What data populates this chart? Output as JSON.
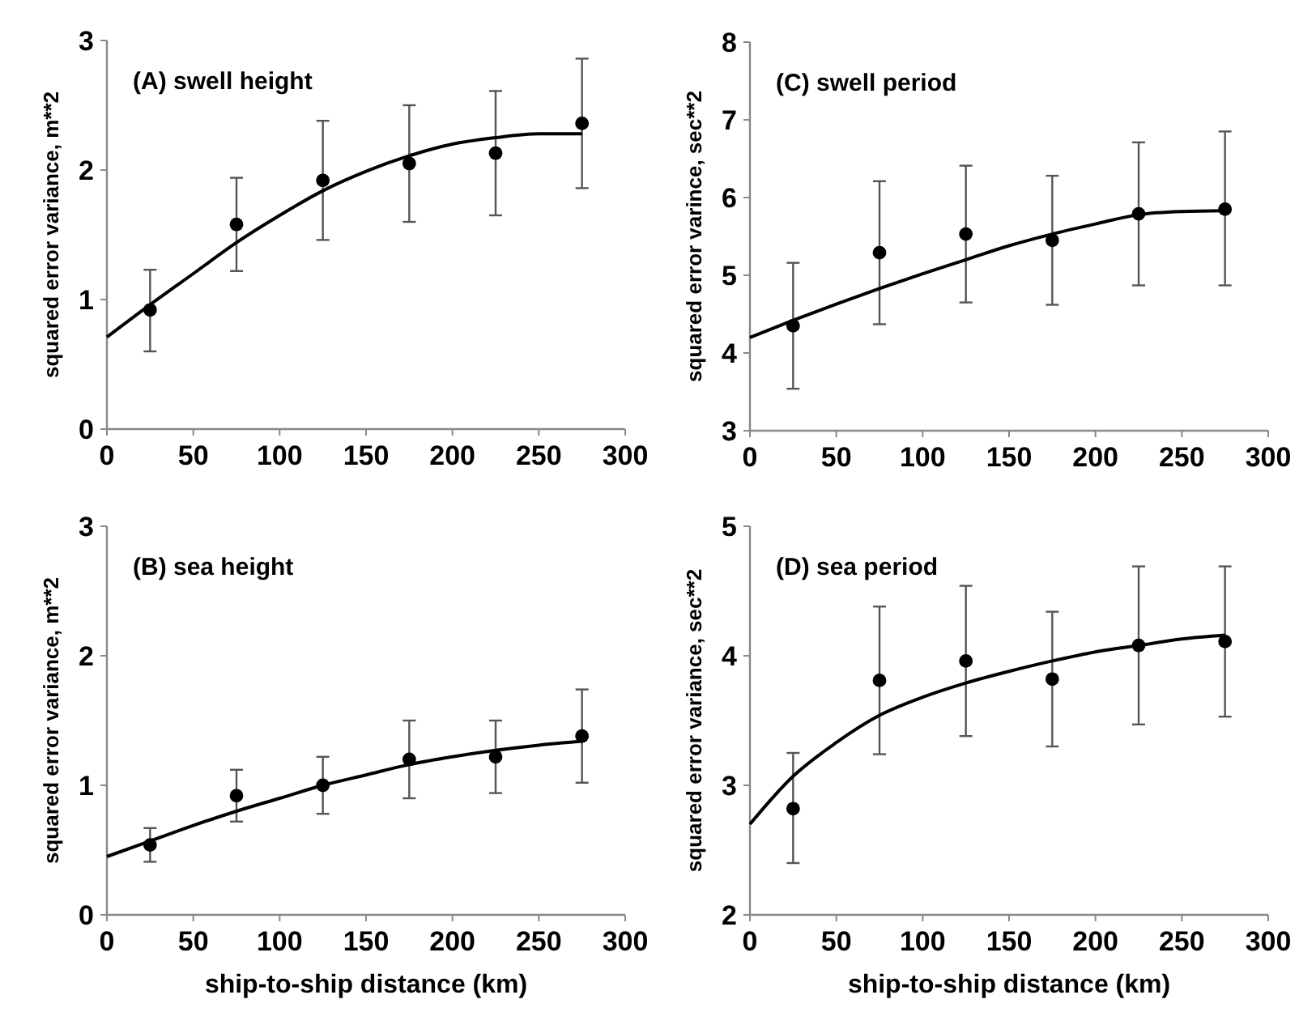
{
  "chart_data": [
    {
      "type": "scatter",
      "title": "(A) swell height",
      "ylabel": "squared error variance, m**2",
      "xlim": [
        0,
        300
      ],
      "xticks": [
        0,
        50,
        100,
        150,
        200,
        250,
        300
      ],
      "ylim": [
        0,
        3
      ],
      "yticks": [
        0,
        1,
        2,
        3
      ],
      "series": [
        {
          "marker": "circle",
          "color": "#000000",
          "x": [
            25,
            75,
            125,
            175,
            225,
            275
          ],
          "values": [
            0.92,
            1.58,
            1.92,
            2.05,
            2.13,
            2.36
          ],
          "errors": [
            [
              0.6,
              1.23
            ],
            [
              1.22,
              1.94
            ],
            [
              1.46,
              2.38
            ],
            [
              1.6,
              2.5
            ],
            [
              1.65,
              2.61
            ],
            [
              1.86,
              2.86
            ]
          ]
        },
        {
          "type": "line",
          "color": "#000000",
          "x": [
            0,
            25,
            50,
            75,
            100,
            125,
            150,
            175,
            200,
            225,
            250,
            275
          ],
          "values": [
            0.71,
            0.96,
            1.2,
            1.44,
            1.65,
            1.84,
            1.99,
            2.11,
            2.2,
            2.25,
            2.28,
            2.28
          ]
        }
      ]
    },
    {
      "type": "scatter",
      "title": "(C) swell period",
      "ylabel": "squared error varince, sec**2",
      "xlim": [
        0,
        300
      ],
      "xticks": [
        0,
        50,
        100,
        150,
        200,
        250,
        300
      ],
      "ylim": [
        3,
        8
      ],
      "yticks": [
        3,
        4,
        5,
        6,
        7,
        8
      ],
      "series": [
        {
          "marker": "circle",
          "color": "#000000",
          "x": [
            25,
            75,
            125,
            175,
            225,
            275
          ],
          "values": [
            4.35,
            5.29,
            5.53,
            5.45,
            5.79,
            5.85
          ],
          "errors": [
            [
              3.54,
              5.16
            ],
            [
              4.37,
              6.21
            ],
            [
              4.65,
              6.41
            ],
            [
              4.62,
              6.28
            ],
            [
              4.87,
              6.71
            ],
            [
              4.87,
              6.85
            ]
          ]
        },
        {
          "type": "line",
          "color": "#000000",
          "x": [
            0,
            25,
            50,
            75,
            100,
            125,
            150,
            175,
            200,
            225,
            250,
            275
          ],
          "values": [
            4.2,
            4.42,
            4.63,
            4.83,
            5.02,
            5.2,
            5.38,
            5.53,
            5.66,
            5.78,
            5.82,
            5.83
          ]
        }
      ]
    },
    {
      "type": "scatter",
      "title": "(B) sea height",
      "xlabel": "ship-to-ship distance (km)",
      "ylabel": "squared error variance, m**2",
      "xlim": [
        0,
        300
      ],
      "xticks": [
        0,
        50,
        100,
        150,
        200,
        250,
        300
      ],
      "ylim": [
        0,
        3
      ],
      "yticks": [
        0,
        1,
        2,
        3
      ],
      "series": [
        {
          "marker": "circle",
          "color": "#000000",
          "x": [
            25,
            75,
            125,
            175,
            225,
            275
          ],
          "values": [
            0.54,
            0.92,
            1.0,
            1.2,
            1.22,
            1.38
          ],
          "errors": [
            [
              0.41,
              0.67
            ],
            [
              0.72,
              1.12
            ],
            [
              0.78,
              1.22
            ],
            [
              0.9,
              1.5
            ],
            [
              0.94,
              1.5
            ],
            [
              1.02,
              1.74
            ]
          ]
        },
        {
          "type": "line",
          "color": "#000000",
          "x": [
            0,
            25,
            50,
            75,
            100,
            125,
            150,
            175,
            200,
            225,
            250,
            275
          ],
          "values": [
            0.45,
            0.57,
            0.69,
            0.8,
            0.9,
            1.0,
            1.08,
            1.16,
            1.22,
            1.27,
            1.31,
            1.34
          ]
        }
      ]
    },
    {
      "type": "scatter",
      "title": "(D) sea period",
      "xlabel": "ship-to-ship distance (km)",
      "ylabel": "squared error variance, sec**2",
      "xlim": [
        0,
        300
      ],
      "xticks": [
        0,
        50,
        100,
        150,
        200,
        250,
        300
      ],
      "ylim": [
        2,
        5
      ],
      "yticks": [
        2,
        3,
        4,
        5
      ],
      "series": [
        {
          "marker": "circle",
          "color": "#000000",
          "x": [
            25,
            75,
            125,
            175,
            225,
            275
          ],
          "values": [
            2.82,
            3.81,
            3.96,
            3.82,
            4.08,
            4.11
          ],
          "errors": [
            [
              2.4,
              3.25
            ],
            [
              3.24,
              4.38
            ],
            [
              3.38,
              4.54
            ],
            [
              3.3,
              4.34
            ],
            [
              3.47,
              4.69
            ],
            [
              3.53,
              4.69
            ]
          ]
        },
        {
          "type": "line",
          "color": "#000000",
          "x": [
            0,
            25,
            50,
            75,
            100,
            125,
            150,
            175,
            200,
            225,
            250,
            275
          ],
          "values": [
            2.7,
            3.07,
            3.33,
            3.54,
            3.68,
            3.79,
            3.88,
            3.96,
            4.03,
            4.08,
            4.13,
            4.16
          ]
        }
      ]
    }
  ]
}
